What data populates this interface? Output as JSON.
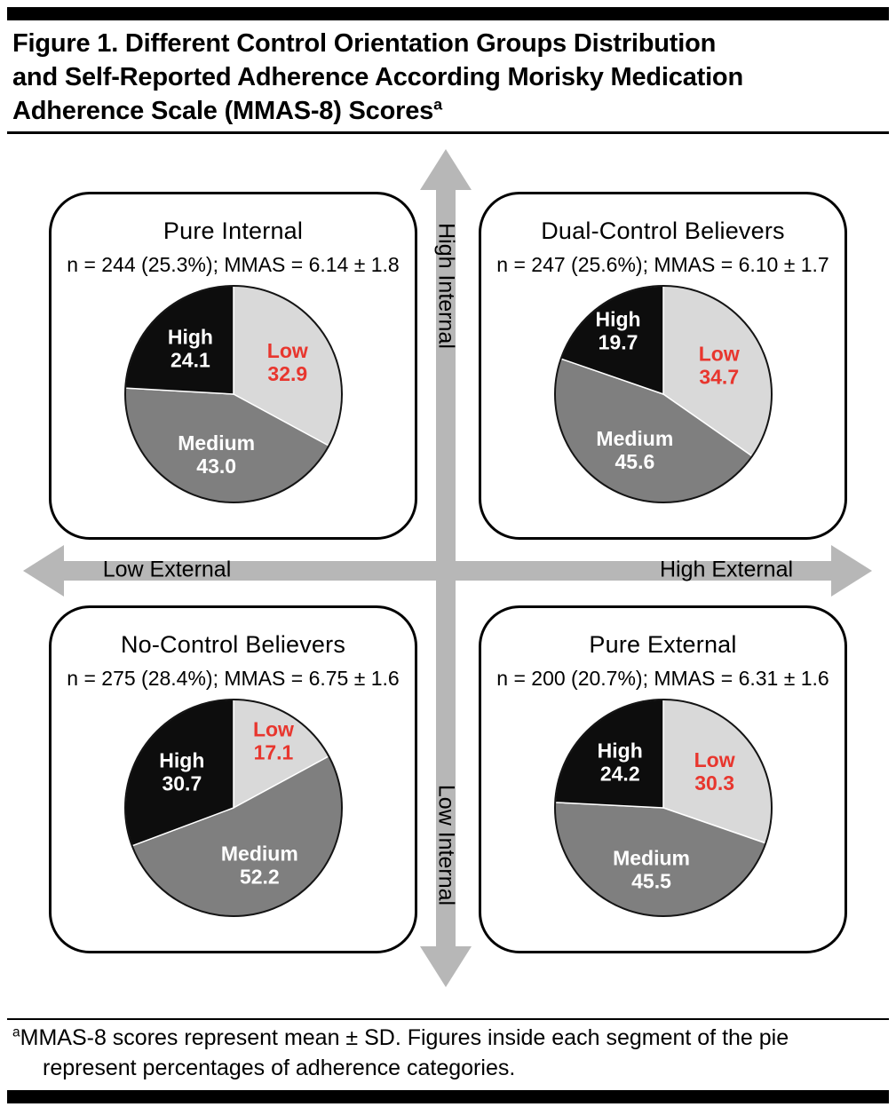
{
  "page": {
    "title_lines": [
      "Figure 1. Different Control Orientation Groups Distribution",
      "and Self-Reported Adherence According Morisky Medication",
      "Adherence Scale (MMAS-8) Scores"
    ],
    "title_superscript": "a",
    "footnote_superscript": "a",
    "footnote_text": "MMAS-8 scores represent mean ± SD. Figures inside each segment of the pie represent percentages of adherence categories."
  },
  "axes": {
    "top_label": "High Internal",
    "bottom_label": "Low Internal",
    "left_label": "Low External",
    "right_label": "High External",
    "arrow_color": "#b7b7b7"
  },
  "colors": {
    "slice_colors": [
      "#d9d9d9",
      "#7f7f7f",
      "#0d0d0d"
    ],
    "label_colors": [
      "#e8362e",
      "#ffffff",
      "#ffffff"
    ],
    "pie_outline": "#141414"
  },
  "chart_data": [
    {
      "type": "pie",
      "quadrant": "top-left",
      "title": "Pure Internal",
      "stats": "n = 244 (25.3%); MMAS = 6.14 ± 1.8",
      "n": 244,
      "pct": 25.3,
      "mmas_mean": 6.14,
      "mmas_sd": 1.8,
      "labels": [
        "Low",
        "Medium",
        "High"
      ],
      "values": [
        32.9,
        43.0,
        24.1
      ],
      "value_labels": [
        "32.9",
        "43.0",
        "24.1"
      ]
    },
    {
      "type": "pie",
      "quadrant": "top-right",
      "title": "Dual-Control Believers",
      "stats": "n = 247 (25.6%); MMAS = 6.10 ± 1.7",
      "n": 247,
      "pct": 25.6,
      "mmas_mean": 6.1,
      "mmas_sd": 1.7,
      "labels": [
        "Low",
        "Medium",
        "High"
      ],
      "values": [
        34.7,
        45.6,
        19.7
      ],
      "value_labels": [
        "34.7",
        "45.6",
        "19.7"
      ]
    },
    {
      "type": "pie",
      "quadrant": "bottom-left",
      "title": "No-Control Believers",
      "stats": "n = 275 (28.4%); MMAS = 6.75 ± 1.6",
      "n": 275,
      "pct": 28.4,
      "mmas_mean": 6.75,
      "mmas_sd": 1.6,
      "labels": [
        "Low",
        "Medium",
        "High"
      ],
      "values": [
        17.1,
        52.2,
        30.7
      ],
      "value_labels": [
        "17.1",
        "52.2",
        "30.7"
      ]
    },
    {
      "type": "pie",
      "quadrant": "bottom-right",
      "title": "Pure External",
      "stats": "n = 200 (20.7%); MMAS = 6.31 ± 1.6",
      "n": 200,
      "pct": 20.7,
      "mmas_mean": 6.31,
      "mmas_sd": 1.6,
      "labels": [
        "Low",
        "Medium",
        "High"
      ],
      "values": [
        30.3,
        45.5,
        24.2
      ],
      "value_labels": [
        "30.3",
        "45.5",
        "24.2"
      ]
    }
  ]
}
